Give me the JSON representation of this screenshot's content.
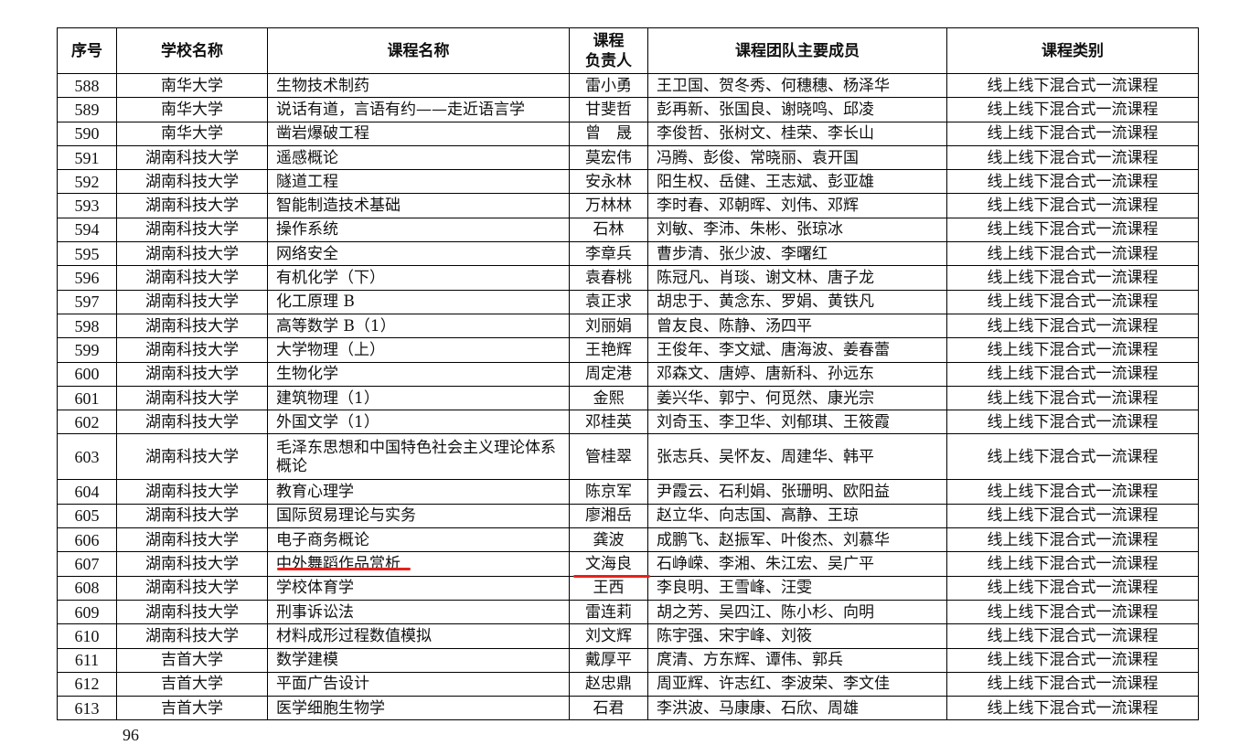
{
  "table": {
    "headers": [
      "序号",
      "学校名称",
      "课程名称",
      "课程\n负责人",
      "课程团队主要成员",
      "课程类别"
    ],
    "rows": [
      [
        "588",
        "南华大学",
        "生物技术制药",
        "雷小勇",
        "王卫国、贺冬秀、何穗穗、杨泽华",
        "线上线下混合式一流课程"
      ],
      [
        "589",
        "南华大学",
        "说话有道，言语有约——走近语言学",
        "甘斐哲",
        "彭再新、张国良、谢晓鸣、邱凌",
        "线上线下混合式一流课程"
      ],
      [
        "590",
        "南华大学",
        "凿岩爆破工程",
        "曾　晟",
        "李俊哲、张树文、桂荣、李长山",
        "线上线下混合式一流课程"
      ],
      [
        "591",
        "湖南科技大学",
        "遥感概论",
        "莫宏伟",
        "冯腾、彭俊、常晓丽、袁开国",
        "线上线下混合式一流课程"
      ],
      [
        "592",
        "湖南科技大学",
        "隧道工程",
        "安永林",
        "阳生权、岳健、王志斌、彭亚雄",
        "线上线下混合式一流课程"
      ],
      [
        "593",
        "湖南科技大学",
        "智能制造技术基础",
        "万林林",
        "李时春、邓朝晖、刘伟、邓辉",
        "线上线下混合式一流课程"
      ],
      [
        "594",
        "湖南科技大学",
        "操作系统",
        "石林",
        "刘敏、李沛、朱彬、张琼冰",
        "线上线下混合式一流课程"
      ],
      [
        "595",
        "湖南科技大学",
        "网络安全",
        "李章兵",
        "曹步清、张少波、李曙红",
        "线上线下混合式一流课程"
      ],
      [
        "596",
        "湖南科技大学",
        "有机化学（下）",
        "袁春桃",
        "陈冠凡、肖琰、谢文林、唐子龙",
        "线上线下混合式一流课程"
      ],
      [
        "597",
        "湖南科技大学",
        "化工原理 B",
        "袁正求",
        "胡忠于、黄念东、罗娟、黄铁凡",
        "线上线下混合式一流课程"
      ],
      [
        "598",
        "湖南科技大学",
        "高等数学 B（1）",
        "刘丽娟",
        "曾友良、陈静、汤四平",
        "线上线下混合式一流课程"
      ],
      [
        "599",
        "湖南科技大学",
        "大学物理（上）",
        "王艳辉",
        "王俊年、李文斌、唐海波、姜春蕾",
        "线上线下混合式一流课程"
      ],
      [
        "600",
        "湖南科技大学",
        "生物化学",
        "周定港",
        "邓森文、唐婷、唐新科、孙远东",
        "线上线下混合式一流课程"
      ],
      [
        "601",
        "湖南科技大学",
        "建筑物理（1）",
        "金熙",
        "姜兴华、郭宁、何觅然、康光宗",
        "线上线下混合式一流课程"
      ],
      [
        "602",
        "湖南科技大学",
        "外国文学（1）",
        "邓桂英",
        "刘奇玉、李卫华、刘郁琪、王筱霞",
        "线上线下混合式一流课程"
      ],
      [
        "603",
        "湖南科技大学",
        "毛泽东思想和中国特色社会主义理论体系概论",
        "管桂翠",
        "张志兵、吴怀友、周建华、韩平",
        "线上线下混合式一流课程"
      ],
      [
        "604",
        "湖南科技大学",
        "教育心理学",
        "陈京军",
        "尹霞云、石利娟、张珊明、欧阳益",
        "线上线下混合式一流课程"
      ],
      [
        "605",
        "湖南科技大学",
        "国际贸易理论与实务",
        "廖湘岳",
        "赵立华、向志国、高静、王琼",
        "线上线下混合式一流课程"
      ],
      [
        "606",
        "湖南科技大学",
        "电子商务概论",
        "龚波",
        "成鹏飞、赵振军、叶俊杰、刘慕华",
        "线上线下混合式一流课程"
      ],
      [
        "607",
        "湖南科技大学",
        "中外舞蹈作品赏析",
        "文海良",
        "石峥嵘、李湘、朱江宏、吴广平",
        "线上线下混合式一流课程"
      ],
      [
        "608",
        "湖南科技大学",
        "学校体育学",
        "王西",
        "李良明、王雪峰、汪雯",
        "线上线下混合式一流课程"
      ],
      [
        "609",
        "湖南科技大学",
        "刑事诉讼法",
        "雷连莉",
        "胡之芳、吴四江、陈小杉、向明",
        "线上线下混合式一流课程"
      ],
      [
        "610",
        "湖南科技大学",
        "材料成形过程数值模拟",
        "刘文辉",
        "陈宇强、宋宇峰、刘筱",
        "线上线下混合式一流课程"
      ],
      [
        "611",
        "吉首大学",
        "数学建模",
        "戴厚平",
        "庹清、方东辉、谭伟、郭兵",
        "线上线下混合式一流课程"
      ],
      [
        "612",
        "吉首大学",
        "平面广告设计",
        "赵忠鼎",
        "周亚辉、许志红、李波荣、李文佳",
        "线上线下混合式一流课程"
      ],
      [
        "613",
        "吉首大学",
        "医学细胞生物学",
        "石君",
        "李洪波、马康康、石欣、周雄",
        "线上线下混合式一流课程"
      ]
    ]
  },
  "highlight": {
    "row": "607",
    "color": "#e8201a"
  },
  "page_number": "96"
}
